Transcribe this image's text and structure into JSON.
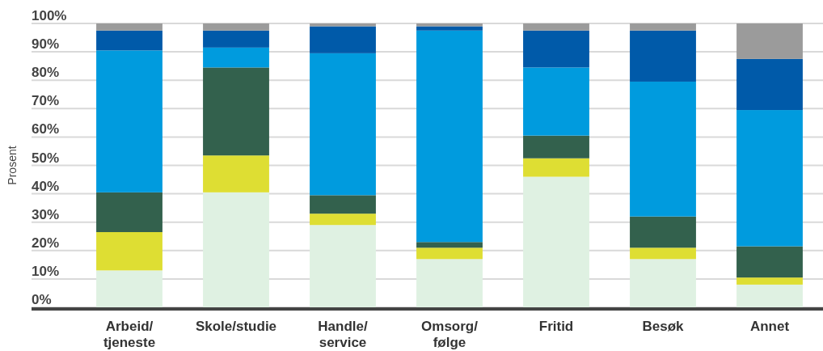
{
  "chart_data": {
    "type": "bar",
    "stacked": true,
    "ylabel": "Prosent",
    "categories": [
      "Arbeid/\ntjeneste",
      "Skole/studie",
      "Handle/\nservice",
      "Omsorg/\nfølge",
      "Fritid",
      "Besøk",
      "Annet"
    ],
    "series": [
      {
        "color": "#dff1e2",
        "values": [
          13,
          40.5,
          29,
          17,
          46,
          17,
          8
        ]
      },
      {
        "color": "#dede33",
        "values": [
          13.5,
          13,
          4,
          4,
          6.5,
          4,
          2.5
        ]
      },
      {
        "color": "#33614d",
        "values": [
          14,
          31,
          6.5,
          2,
          8,
          11,
          11
        ]
      },
      {
        "color": "#009bde",
        "values": [
          50,
          7,
          50,
          74.5,
          24,
          47.5,
          48
        ]
      },
      {
        "color": "#005aa9",
        "values": [
          7,
          6,
          9.5,
          1.5,
          13,
          18,
          18
        ]
      },
      {
        "color": "#9b9b9b",
        "values": [
          2.5,
          2.5,
          1,
          1,
          2.5,
          2.5,
          12.5
        ]
      }
    ],
    "ylim": [
      0,
      100
    ],
    "yticks": [
      {
        "value": 0,
        "label": "0%"
      },
      {
        "value": 10,
        "label": "10%"
      },
      {
        "value": 20,
        "label": "20%"
      },
      {
        "value": 30,
        "label": "30%"
      },
      {
        "value": 40,
        "label": "40%"
      },
      {
        "value": 50,
        "label": "50%"
      },
      {
        "value": 60,
        "label": "60%"
      },
      {
        "value": 70,
        "label": "70%"
      },
      {
        "value": 80,
        "label": "80%"
      },
      {
        "value": 90,
        "label": "90%"
      },
      {
        "value": 100,
        "label": "100%"
      }
    ],
    "grid": "y"
  }
}
